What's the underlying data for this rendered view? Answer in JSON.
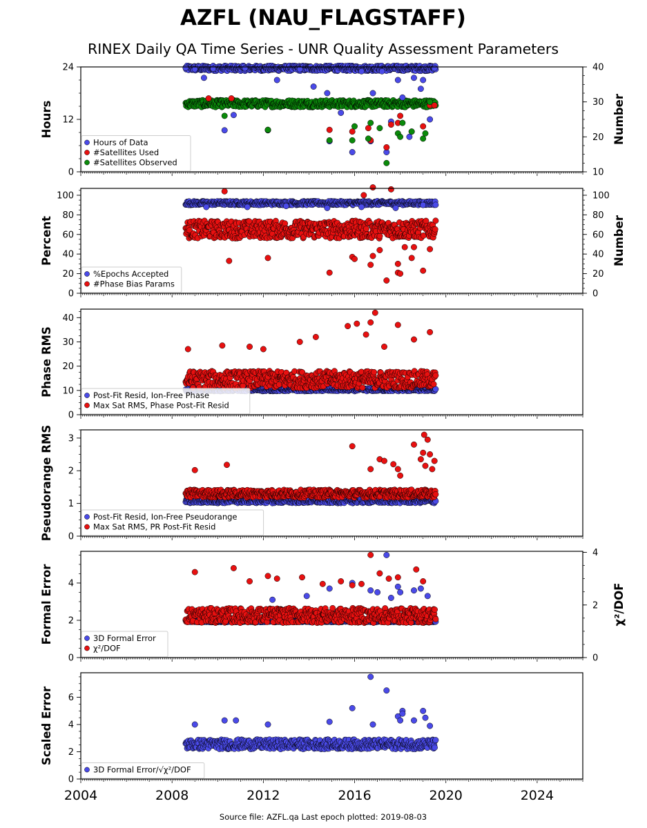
{
  "title": "AZFL (NAU_FLAGSTAFF)",
  "subtitle": "RINEX Daily QA Time Series - UNR Quality Assessment Parameters",
  "footer": "Source file: AZFL.qa Last epoch plotted: 2019-08-03",
  "colors": {
    "blue": "#4a4ae8",
    "red": "#e81010",
    "green": "#0a8a0a",
    "edge": "#000000"
  },
  "chart_data": [
    {
      "type": "scatter",
      "ylabel": "Hours",
      "ylabel_right": "Number",
      "xlim": [
        2004,
        2026
      ],
      "ylim": [
        0,
        24
      ],
      "yticks": [
        "0",
        "12",
        "24"
      ],
      "ylim_right": [
        10,
        40
      ],
      "yticks_right": [
        "10",
        "20",
        "30",
        "40"
      ],
      "legend": [
        "Hours of Data",
        "#Satellites Used",
        "#Satellites Observed"
      ],
      "series": [
        {
          "name": "Hours of Data",
          "axis": "left",
          "color": "blue",
          "points": [
            [
              2008.6,
              23.8
            ],
            [
              2009.0,
              23.5
            ],
            [
              2009.4,
              21.5
            ],
            [
              2009.8,
              23.6
            ],
            [
              2010.3,
              9.5
            ],
            [
              2010.7,
              13.0
            ],
            [
              2011.2,
              23.7
            ],
            [
              2012.2,
              9.5
            ],
            [
              2012.6,
              21.0
            ],
            [
              2013.6,
              23.5
            ],
            [
              2014.2,
              19.5
            ],
            [
              2014.8,
              18.0
            ],
            [
              2014.9,
              7.0
            ],
            [
              2015.4,
              13.5
            ],
            [
              2015.9,
              4.5
            ],
            [
              2016.3,
              23.0
            ],
            [
              2016.7,
              7.0
            ],
            [
              2016.8,
              18.0
            ],
            [
              2017.2,
              23.0
            ],
            [
              2017.4,
              4.5
            ],
            [
              2017.6,
              11.5
            ],
            [
              2017.9,
              21.0
            ],
            [
              2018.1,
              17.0
            ],
            [
              2018.4,
              8.0
            ],
            [
              2018.6,
              21.5
            ],
            [
              2018.9,
              19.0
            ],
            [
              2019.0,
              21.0
            ],
            [
              2019.3,
              12.0
            ],
            [
              2019.5,
              23.7
            ]
          ]
        },
        {
          "name": "#Satellites Used",
          "axis": "right",
          "color": "red",
          "points": [
            [
              2009.6,
              31.0
            ],
            [
              2010.6,
              31.0
            ],
            [
              2012.2,
              22.0
            ],
            [
              2014.9,
              22.0
            ],
            [
              2015.9,
              21.5
            ],
            [
              2016.6,
              22.5
            ],
            [
              2016.7,
              19.0
            ],
            [
              2017.4,
              17.0
            ],
            [
              2017.6,
              23.5
            ],
            [
              2017.9,
              24.0
            ],
            [
              2018.0,
              26.0
            ],
            [
              2018.5,
              21.5
            ],
            [
              2019.0,
              23.0
            ],
            [
              2019.3,
              29.0
            ],
            [
              2019.5,
              29.0
            ]
          ]
        },
        {
          "name": "#Satellites Observed",
          "axis": "right",
          "color": "green",
          "points": [
            [
              2010.3,
              26.0
            ],
            [
              2012.2,
              22.0
            ],
            [
              2014.9,
              19.0
            ],
            [
              2015.9,
              19.0
            ],
            [
              2016.0,
              23.0
            ],
            [
              2016.6,
              19.5
            ],
            [
              2016.7,
              24.0
            ],
            [
              2017.1,
              22.5
            ],
            [
              2017.4,
              12.5
            ],
            [
              2017.9,
              21.0
            ],
            [
              2018.0,
              20.0
            ],
            [
              2018.1,
              24.0
            ],
            [
              2018.5,
              21.5
            ],
            [
              2019.0,
              19.5
            ],
            [
              2019.1,
              21.0
            ],
            [
              2019.3,
              30.0
            ]
          ]
        }
      ],
      "bands": [
        {
          "color": "blue",
          "axis": "left",
          "x": [
            2008.6,
            2019.55
          ],
          "y": 23.7,
          "spread": 0.6
        },
        {
          "color": "green",
          "axis": "right",
          "x": [
            2008.6,
            2019.55
          ],
          "y": 29.5,
          "spread": 1.0
        }
      ]
    },
    {
      "type": "scatter",
      "ylabel": "Percent",
      "ylabel_right": "Number",
      "xlim": [
        2004,
        2026
      ],
      "ylim": [
        0,
        107
      ],
      "yticks": [
        "0",
        "20",
        "40",
        "60",
        "80",
        "100"
      ],
      "ylim_right": [
        0,
        107
      ],
      "yticks_right": [
        "0",
        "20",
        "40",
        "60",
        "80",
        "100"
      ],
      "legend": [
        "%Epochs Accepted",
        "#Phase Bias Params"
      ],
      "series": [
        {
          "name": "%Epochs Accepted",
          "axis": "left",
          "color": "blue",
          "points": [
            [
              2009.5,
              88
            ],
            [
              2011.3,
              88
            ],
            [
              2013.0,
              89
            ],
            [
              2014.8,
              87
            ],
            [
              2016.3,
              88
            ],
            [
              2017.8,
              87
            ],
            [
              2019.0,
              90
            ]
          ]
        },
        {
          "name": "#Phase Bias Params",
          "axis": "right",
          "color": "red",
          "points": [
            [
              2010.3,
              104
            ],
            [
              2010.5,
              33
            ],
            [
              2012.2,
              36
            ],
            [
              2014.9,
              21
            ],
            [
              2015.9,
              37
            ],
            [
              2016.0,
              35
            ],
            [
              2016.4,
              100
            ],
            [
              2016.8,
              108
            ],
            [
              2016.7,
              29
            ],
            [
              2016.8,
              38
            ],
            [
              2017.1,
              44
            ],
            [
              2017.4,
              13
            ],
            [
              2017.6,
              106
            ],
            [
              2017.9,
              21
            ],
            [
              2017.9,
              30
            ],
            [
              2018.0,
              20
            ],
            [
              2018.2,
              47
            ],
            [
              2018.5,
              36
            ],
            [
              2018.6,
              47
            ],
            [
              2019.0,
              23
            ],
            [
              2019.3,
              45
            ]
          ]
        }
      ],
      "bands": [
        {
          "color": "blue",
          "axis": "left",
          "x": [
            2008.6,
            2019.55
          ],
          "y": 92,
          "spread": 2.0
        },
        {
          "color": "red",
          "axis": "right",
          "x": [
            2008.6,
            2019.55
          ],
          "y": 65,
          "spread": 9
        }
      ]
    },
    {
      "type": "scatter",
      "ylabel": "Phase RMS",
      "xlim": [
        2004,
        2026
      ],
      "ylim": [
        0,
        43.5
      ],
      "yticks": [
        "0",
        "10",
        "20",
        "30",
        "40"
      ],
      "legend": [
        "Post-Fit Resid, Ion-Free Phase",
        "Max Sat RMS, Phase Post-Fit Resid"
      ],
      "series": [
        {
          "name": "Post-Fit Resid, Ion-Free Phase",
          "axis": "left",
          "color": "blue",
          "points": []
        },
        {
          "name": "Max Sat RMS, Phase Post-Fit Resid",
          "axis": "left",
          "color": "red",
          "points": [
            [
              2008.7,
              27
            ],
            [
              2010.2,
              28.5
            ],
            [
              2013.6,
              30
            ],
            [
              2014.3,
              32
            ],
            [
              2015.7,
              36.5
            ],
            [
              2016.1,
              37.5
            ],
            [
              2016.5,
              33
            ],
            [
              2016.7,
              38
            ],
            [
              2016.9,
              42
            ],
            [
              2017.3,
              28
            ],
            [
              2017.9,
              37
            ],
            [
              2018.6,
              31
            ],
            [
              2019.3,
              34
            ],
            [
              2012.0,
              27
            ],
            [
              2011.4,
              28
            ]
          ]
        }
      ],
      "bands": [
        {
          "color": "blue",
          "axis": "left",
          "x": [
            2008.6,
            2019.55
          ],
          "y": 10.3,
          "spread": 0.6
        },
        {
          "color": "red",
          "axis": "left",
          "x": [
            2008.6,
            2019.55
          ],
          "y": 14.5,
          "spread": 3.5
        }
      ]
    },
    {
      "type": "scatter",
      "ylabel": "Pseudorange RMS",
      "xlim": [
        2004,
        2026
      ],
      "ylim": [
        0,
        3.25
      ],
      "yticks": [
        "0",
        "1",
        "2",
        "3"
      ],
      "legend": [
        "Post-Fit Resid, Ion-Free Pseudorange",
        "Max Sat RMS, PR Post-Fit Resid"
      ],
      "series": [
        {
          "name": "Post-Fit Resid, Ion-Free Pseudorange",
          "axis": "left",
          "color": "blue",
          "points": []
        },
        {
          "name": "Max Sat RMS, PR Post-Fit Resid",
          "axis": "left",
          "color": "red",
          "points": [
            [
              2009.0,
              2.02
            ],
            [
              2010.4,
              2.18
            ],
            [
              2015.9,
              2.75
            ],
            [
              2016.7,
              2.05
            ],
            [
              2017.1,
              2.35
            ],
            [
              2017.3,
              2.3
            ],
            [
              2017.7,
              2.2
            ],
            [
              2017.9,
              2.05
            ],
            [
              2018.0,
              1.85
            ],
            [
              2018.6,
              2.8
            ],
            [
              2018.9,
              2.35
            ],
            [
              2019.0,
              2.55
            ],
            [
              2019.05,
              3.1
            ],
            [
              2019.2,
              2.95
            ],
            [
              2019.3,
              2.5
            ],
            [
              2019.4,
              2.05
            ],
            [
              2019.5,
              2.3
            ],
            [
              2019.1,
              2.15
            ]
          ]
        }
      ],
      "bands": [
        {
          "color": "blue",
          "axis": "left",
          "x": [
            2008.6,
            2019.55
          ],
          "y": 1.08,
          "spread": 0.07
        },
        {
          "color": "red",
          "axis": "left",
          "x": [
            2008.6,
            2019.55
          ],
          "y": 1.3,
          "spread": 0.12
        }
      ]
    },
    {
      "type": "scatter",
      "ylabel": "Formal Error",
      "ylabel_right": "χ²/DOF",
      "xlim": [
        2004,
        2026
      ],
      "ylim": [
        0,
        5.7
      ],
      "yticks": [
        "0",
        "2",
        "4"
      ],
      "ylim_right": [
        0,
        4.04
      ],
      "yticks_right": [
        "0",
        "2",
        "4"
      ],
      "legend": [
        "3D Formal Error",
        "χ²/DOF"
      ],
      "series": [
        {
          "name": "3D Formal Error",
          "axis": "left",
          "color": "blue",
          "points": [
            [
              2012.4,
              3.1
            ],
            [
              2013.9,
              3.3
            ],
            [
              2014.9,
              3.7
            ],
            [
              2015.9,
              4.0
            ],
            [
              2016.7,
              3.6
            ],
            [
              2017.0,
              3.5
            ],
            [
              2017.4,
              5.5
            ],
            [
              2017.6,
              3.2
            ],
            [
              2017.9,
              3.8
            ],
            [
              2018.0,
              3.5
            ],
            [
              2018.6,
              3.6
            ],
            [
              2018.9,
              3.7
            ],
            [
              2019.2,
              3.3
            ]
          ]
        },
        {
          "name": "χ²/DOF",
          "axis": "right",
          "color": "red",
          "points": [
            [
              2009.0,
              3.25
            ],
            [
              2010.7,
              3.4
            ],
            [
              2011.4,
              2.9
            ],
            [
              2012.2,
              3.1
            ],
            [
              2012.6,
              3.0
            ],
            [
              2013.7,
              3.05
            ],
            [
              2014.6,
              2.8
            ],
            [
              2015.4,
              2.9
            ],
            [
              2015.9,
              2.75
            ],
            [
              2016.3,
              2.8
            ],
            [
              2016.7,
              3.9
            ],
            [
              2017.1,
              3.2
            ],
            [
              2017.5,
              3.0
            ],
            [
              2017.9,
              3.05
            ],
            [
              2018.7,
              3.35
            ],
            [
              2019.0,
              2.9
            ]
          ]
        }
      ],
      "bands": [
        {
          "color": "blue",
          "axis": "left",
          "x": [
            2008.6,
            2019.55
          ],
          "y": 1.95,
          "spread": 0.05
        },
        {
          "color": "red",
          "axis": "right",
          "x": [
            2008.6,
            2019.55
          ],
          "y": 1.6,
          "spread": 0.28
        }
      ]
    },
    {
      "type": "scatter",
      "ylabel": "Scaled Error",
      "xlim": [
        2004,
        2026
      ],
      "ylim": [
        0,
        7.8
      ],
      "yticks": [
        "0",
        "2",
        "4",
        "6"
      ],
      "xticks": [
        "2004",
        "2008",
        "2012",
        "2016",
        "2020",
        "2024"
      ],
      "legend": [
        "3D Formal Error/√χ²/DOF"
      ],
      "series": [
        {
          "name": "3D Formal Error/√χ²/DOF",
          "axis": "left",
          "color": "blue",
          "points": [
            [
              2009.0,
              4.0
            ],
            [
              2010.3,
              4.3
            ],
            [
              2010.8,
              4.3
            ],
            [
              2012.2,
              4.0
            ],
            [
              2014.9,
              4.2
            ],
            [
              2015.9,
              5.2
            ],
            [
              2016.7,
              7.5
            ],
            [
              2017.4,
              6.5
            ],
            [
              2017.9,
              4.6
            ],
            [
              2018.0,
              4.3
            ],
            [
              2018.1,
              5.0
            ],
            [
              2018.1,
              4.8
            ],
            [
              2018.6,
              4.3
            ],
            [
              2019.0,
              5.0
            ],
            [
              2019.1,
              4.5
            ],
            [
              2019.3,
              3.9
            ],
            [
              2016.8,
              4.0
            ]
          ]
        }
      ],
      "bands": [
        {
          "color": "blue",
          "axis": "left",
          "x": [
            2008.6,
            2019.55
          ],
          "y": 2.55,
          "spread": 0.35
        }
      ]
    }
  ]
}
